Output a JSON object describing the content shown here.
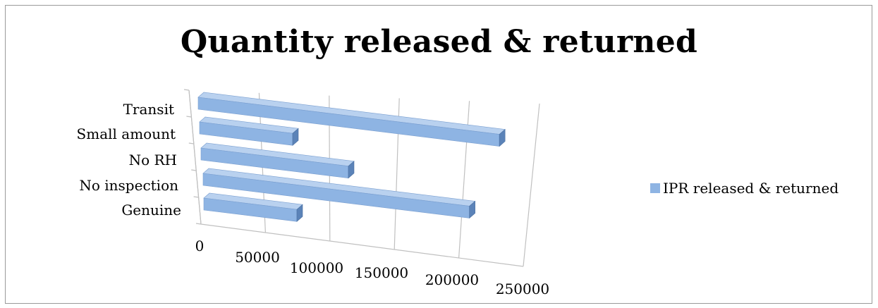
{
  "chart_data": {
    "type": "bar",
    "orientation": "horizontal",
    "title": "Quantity released & returned",
    "categories": [
      "Genuine",
      "No inspection",
      "No RH",
      "Small amount",
      "Transit"
    ],
    "series": [
      {
        "name": "IPR released & returned",
        "values": [
          72000,
          206000,
          114000,
          72000,
          233000
        ]
      }
    ],
    "x_ticks": [
      "0",
      "50000",
      "100000",
      "150000",
      "200000",
      "250000"
    ],
    "xlim": [
      0,
      250000
    ],
    "grid": true,
    "legend_position": "right"
  },
  "colors": {
    "bar_front": "#8eb4e3",
    "bar_top": "#b9d1ef",
    "bar_side": "#5b83b8",
    "grid": "#c0c0c0",
    "legend_swatch": "#8eb4e3"
  }
}
